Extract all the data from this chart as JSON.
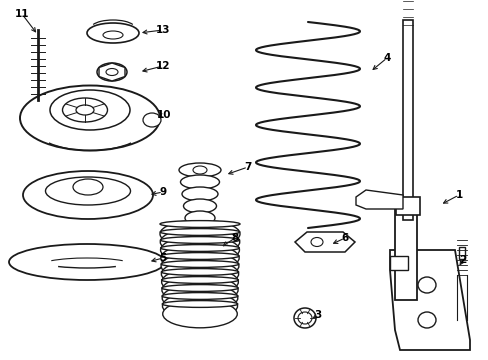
{
  "background_color": "#ffffff",
  "line_color": "#1a1a1a",
  "fig_width": 4.89,
  "fig_height": 3.6,
  "dpi": 100,
  "xlim": [
    0,
    489
  ],
  "ylim": [
    0,
    360
  ]
}
